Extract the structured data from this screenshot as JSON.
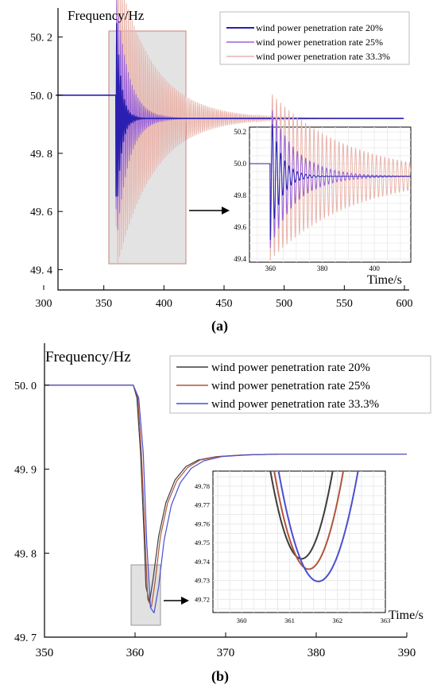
{
  "figure": {
    "panel_a_label": "(a)",
    "panel_b_label": "(b)"
  },
  "chart_data": [
    {
      "type": "line",
      "ylabel": "Frequency/Hz",
      "xlabel": "",
      "xlim": [
        300,
        600
      ],
      "ylim": [
        49.33,
        50.3
      ],
      "xticks": [
        "300",
        "350",
        "400",
        "450",
        "500",
        "550",
        "600"
      ],
      "yticks": [
        "49. 4",
        "49. 6",
        "49. 8",
        "50. 0",
        "50. 2"
      ],
      "series": [
        {
          "name": "wind power penetration rate 20%",
          "color": "#2a1fb0",
          "steady": 49.92,
          "pre": 50.0,
          "min": 49.52,
          "decay_s": 4
        },
        {
          "name": "wind power penetration rate 25%",
          "color": "#9a63d8",
          "steady": 49.92,
          "pre": 50.0,
          "min": 49.47,
          "decay_s": 10
        },
        {
          "name": "wind power penetration rate 33.3%",
          "color": "#e8b4ab",
          "steady": 49.92,
          "pre": 50.0,
          "min": 49.39,
          "decay_s": 30
        }
      ],
      "event_time": 360,
      "highlight": {
        "x": [
          345,
          411
        ],
        "y": [
          49.39,
          50.23
        ]
      },
      "inset": {
        "xlim": [
          352,
          414
        ],
        "ylim": [
          49.38,
          50.23
        ],
        "xticks": [
          "360",
          "380",
          "400"
        ],
        "yticks": [
          "49.4",
          "49.6",
          "49.8",
          "50.0",
          "50.2"
        ],
        "xlabel": "Time/s"
      },
      "legend_position": "top-right"
    },
    {
      "type": "line",
      "ylabel": "Frequency/Hz",
      "xlabel": "",
      "xlim": [
        350,
        390
      ],
      "ylim": [
        49.7,
        50.05
      ],
      "xticks": [
        "350",
        "360",
        "370",
        "380",
        "390"
      ],
      "yticks": [
        "49. 7",
        "49. 8",
        "49. 9",
        "50. 0"
      ],
      "series": [
        {
          "name": "wind power penetration rate 20%",
          "color": "#3d3d3d",
          "x": [
            350,
            359.8,
            360.2,
            360.6,
            361.0,
            361.2,
            361.6,
            362.0,
            362.6,
            363.4,
            364.4,
            365.6,
            367.0,
            369.0,
            372.0,
            376.0,
            390
          ],
          "y": [
            50.0,
            50.0,
            49.985,
            49.92,
            49.82,
            49.76,
            49.742,
            49.77,
            49.82,
            49.86,
            49.887,
            49.903,
            49.911,
            49.915,
            49.917,
            49.918,
            49.918
          ]
        },
        {
          "name": "wind power penetration rate 25%",
          "color": "#b0553c",
          "x": [
            350,
            359.8,
            360.3,
            360.7,
            361.1,
            361.4,
            361.8,
            362.2,
            362.8,
            363.6,
            364.6,
            365.8,
            367.2,
            369.2,
            372.0,
            376.0,
            390
          ],
          "y": [
            50.0,
            50.0,
            49.985,
            49.92,
            49.82,
            49.745,
            49.736,
            49.765,
            49.82,
            49.86,
            49.886,
            49.902,
            49.911,
            49.915,
            49.917,
            49.918,
            49.918
          ]
        },
        {
          "name": "wind power penetration rate 33.3%",
          "color": "#4a4fd0",
          "x": [
            350,
            359.8,
            360.4,
            360.9,
            361.3,
            361.7,
            362.1,
            362.6,
            363.2,
            364.0,
            365.0,
            366.2,
            367.6,
            369.6,
            372.4,
            376.0,
            390
          ],
          "y": [
            50.0,
            50.0,
            49.985,
            49.92,
            49.81,
            49.735,
            49.729,
            49.76,
            49.815,
            49.857,
            49.884,
            49.901,
            49.91,
            49.915,
            49.917,
            49.918,
            49.918
          ]
        }
      ],
      "highlight": {
        "x": [
          360.4,
          363.1
        ],
        "y": [
          49.712,
          49.789
        ]
      },
      "inset": {
        "xlim": [
          359.4,
          363
        ],
        "ylim": [
          49.713,
          49.788
        ],
        "xticks": [
          "360",
          "361",
          "362",
          "363"
        ],
        "yticks": [
          "49.72",
          "49.73",
          "49.74",
          "49.75",
          "49.76",
          "49.77",
          "49.78"
        ],
        "xlabel": "Time/s"
      },
      "legend_position": "top-right"
    }
  ]
}
